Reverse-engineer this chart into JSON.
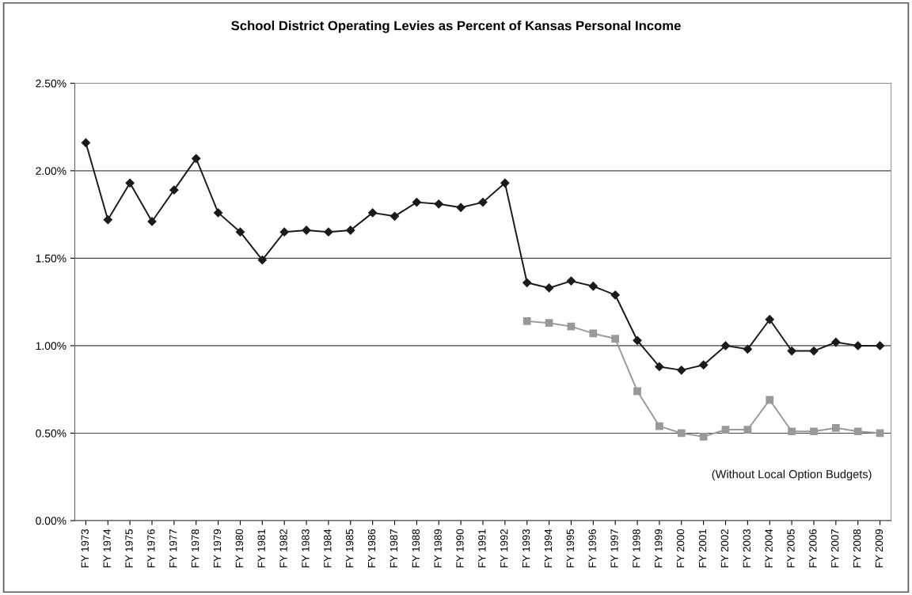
{
  "chart_data": {
    "type": "line",
    "title": "School District Operating Levies as Percent of Kansas Personal Income",
    "categories": [
      "FY 1973",
      "FY 1974",
      "FY 1975",
      "FY 1976",
      "FY 1977",
      "FY 1978",
      "FY 1979",
      "FY 1980",
      "FY 1981",
      "FY 1982",
      "FY 1983",
      "FY 1984",
      "FY 1985",
      "FY 1986",
      "FY 1987",
      "FY 1988",
      "FY 1989",
      "FY 1990",
      "FY 1991",
      "FY 1992",
      "FY 1993",
      "FY 1994",
      "FY 1995",
      "FY 1996",
      "FY 1997",
      "FY 1998",
      "FY 1999",
      "FY 2000",
      "FY 2001",
      "FY 2002",
      "FY 2003",
      "FY 2004",
      "FY 2005",
      "FY 2006",
      "FY 2007",
      "FY 2008",
      "FY 2009"
    ],
    "series": [
      {
        "color": "#1a1a1a",
        "marker": "diamond",
        "values": [
          2.16,
          1.72,
          1.93,
          1.71,
          1.89,
          2.07,
          1.76,
          1.65,
          1.49,
          1.65,
          1.66,
          1.65,
          1.66,
          1.76,
          1.74,
          1.82,
          1.81,
          1.79,
          1.82,
          1.93,
          1.36,
          1.33,
          1.37,
          1.34,
          1.29,
          1.03,
          0.88,
          0.86,
          0.89,
          1.0,
          0.98,
          1.15,
          0.97,
          0.97,
          1.02,
          1.0,
          1.0
        ]
      },
      {
        "name": "(Without Local Option Budgets)",
        "color": "#999999",
        "marker": "square",
        "values": [
          null,
          null,
          null,
          null,
          null,
          null,
          null,
          null,
          null,
          null,
          null,
          null,
          null,
          null,
          null,
          null,
          null,
          null,
          null,
          null,
          1.14,
          1.13,
          1.11,
          1.07,
          1.04,
          0.74,
          0.54,
          0.5,
          0.48,
          0.52,
          0.52,
          0.69,
          0.51,
          0.51,
          0.53,
          0.51,
          0.5
        ]
      }
    ],
    "ylim": [
      0,
      2.5
    ],
    "yticks": [
      {
        "value": 0,
        "label": "0.00%"
      },
      {
        "value": 0.5,
        "label": "0.50%"
      },
      {
        "value": 1.0,
        "label": "1.00%"
      },
      {
        "value": 1.5,
        "label": "1.50%"
      },
      {
        "value": 2.0,
        "label": "2.00%"
      },
      {
        "value": 2.5,
        "label": "2.50%"
      }
    ],
    "grid": "y",
    "line_style": "solid"
  }
}
